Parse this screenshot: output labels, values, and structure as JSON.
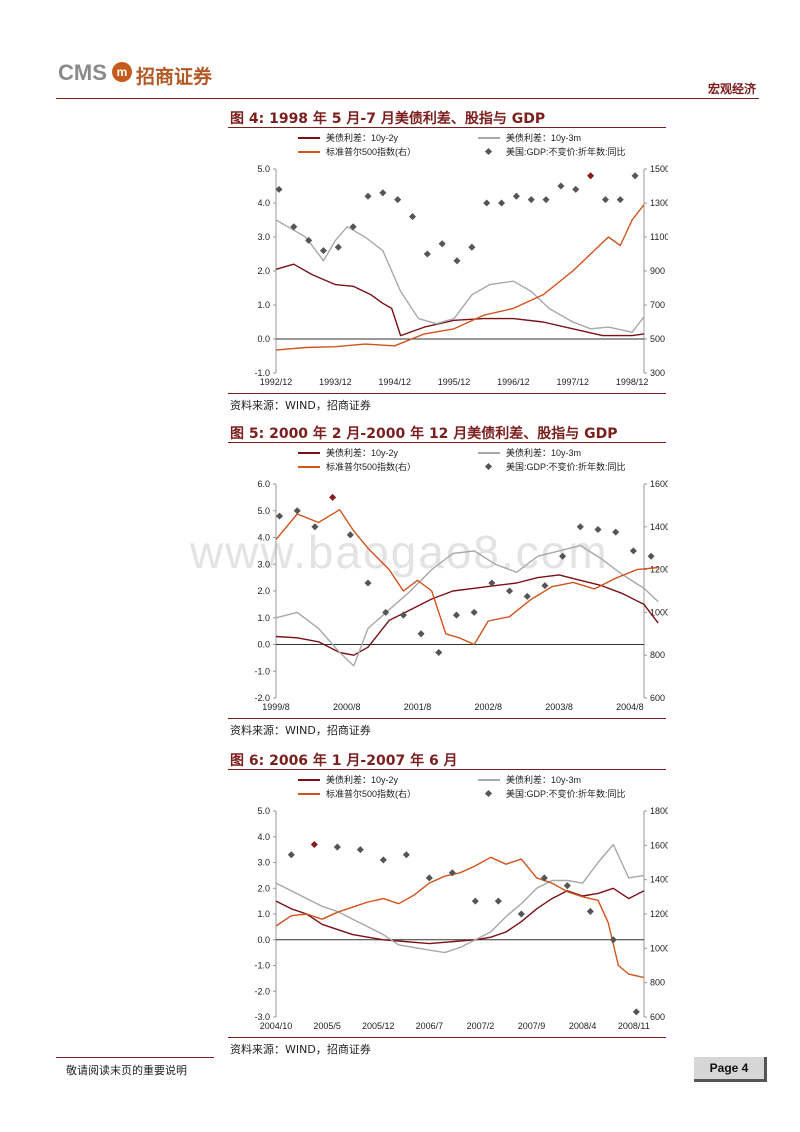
{
  "header": {
    "logo_text": "CMS",
    "logo_mark": "m",
    "logo_cn": "招商证券",
    "section": "宏观经济"
  },
  "watermark": "www.baogao8.com",
  "figures": [
    {
      "title": "图 4: 1998 年 5 月-7 月美债利差、股指与 GDP",
      "source": "资料来源：WIND，招商证券",
      "legend": [
        "美债利差：10y-2y",
        "美债利差：10y-3m",
        "标准普尔500指数(右）",
        "美国:GDP:不变价:折年数:同比"
      ]
    },
    {
      "title": "图 5: 2000 年 2 月-2000 年 12 月美债利差、股指与 GDP",
      "source": "资料来源：WIND，招商证券",
      "legend": [
        "美债利差：10y-2y",
        "美债利差：10y-3m",
        "标准普尔500指数(右）",
        "美国:GDP:不变价:折年数:同比"
      ]
    },
    {
      "title": "图 6: 2006 年 1 月-2007 年 6 月",
      "source": "资料来源：WIND，招商证券",
      "legend": [
        "美债利差：10y-2y",
        "美债利差：10y-3m",
        "标准普尔500指数(右）",
        "美国:GDP:不变价:折年数:同比"
      ]
    }
  ],
  "colors": {
    "spread_10y2y": "#7a1118",
    "spread_10y3m": "#a8a8a8",
    "sp500": "#d2531c",
    "gdp": "#555555",
    "gdp_highlight": "#8b1a1a",
    "accent": "#7a1e1e"
  },
  "chart_data": [
    {
      "type": "line",
      "x_ticks": [
        "1992/12",
        "1993/12",
        "1994/12",
        "1995/12",
        "1996/12",
        "1997/12",
        "1998/12"
      ],
      "ylim": [
        -1.0,
        5.0
      ],
      "y_ticks": [
        "5.0",
        "4.0",
        "3.0",
        "2.0",
        "1.0",
        "0.0",
        "-1.0"
      ],
      "y2lim": [
        300,
        1500
      ],
      "y2_ticks": [
        "1500",
        "1300",
        "1100",
        "900",
        "700",
        "500",
        "300"
      ],
      "series": [
        {
          "name": "美债利差：10y-2y",
          "x": [
            0,
            0.3,
            0.6,
            1,
            1.3,
            1.6,
            1.8,
            1.95,
            2.1,
            2.5,
            3,
            3.5,
            4,
            4.5,
            5,
            5.5,
            6,
            6.2
          ],
          "values": [
            2.05,
            2.2,
            1.9,
            1.6,
            1.55,
            1.3,
            1.05,
            0.9,
            0.1,
            0.35,
            0.55,
            0.6,
            0.6,
            0.5,
            0.3,
            0.1,
            0.1,
            0.15
          ]
        },
        {
          "name": "美债利差：10y-3m",
          "x": [
            0,
            0.2,
            0.5,
            0.8,
            1,
            1.2,
            1.5,
            1.8,
            2.1,
            2.4,
            2.7,
            3,
            3.3,
            3.6,
            4,
            4.3,
            4.6,
            5,
            5.3,
            5.6,
            6,
            6.2
          ],
          "values": [
            3.5,
            3.3,
            3.0,
            2.3,
            2.9,
            3.3,
            3.0,
            2.6,
            1.4,
            0.6,
            0.45,
            0.6,
            1.3,
            1.6,
            1.7,
            1.4,
            0.9,
            0.5,
            0.3,
            0.35,
            0.2,
            0.65
          ]
        },
        {
          "name": "标准普尔500指数(右）",
          "x": [
            0,
            0.5,
            1,
            1.5,
            2,
            2.5,
            3,
            3.5,
            4,
            4.5,
            5,
            5.3,
            5.6,
            5.8,
            6,
            6.2
          ],
          "values": [
            435,
            450,
            455,
            470,
            460,
            530,
            560,
            640,
            680,
            760,
            900,
            1000,
            1100,
            1050,
            1200,
            1290
          ]
        },
        {
          "name": "美国:GDP:不变价:折年数:同比",
          "type": "scatter",
          "x": [
            0.05,
            0.3,
            0.55,
            0.8,
            1.05,
            1.3,
            1.55,
            1.8,
            2.05,
            2.3,
            2.55,
            2.8,
            3.05,
            3.3,
            3.55,
            3.8,
            4.05,
            4.3,
            4.55,
            4.8,
            5.05,
            5.3,
            5.55,
            5.8,
            6.05
          ],
          "values": [
            4.4,
            3.3,
            2.9,
            2.6,
            2.7,
            3.3,
            4.2,
            4.3,
            4.1,
            3.6,
            2.5,
            2.8,
            2.3,
            2.7,
            4.0,
            4.0,
            4.2,
            4.1,
            4.1,
            4.5,
            4.4,
            4.8,
            4.1,
            4.1,
            4.8
          ]
        }
      ]
    },
    {
      "type": "line",
      "x_ticks": [
        "1999/8",
        "2000/8",
        "2001/8",
        "2002/8",
        "2003/8",
        "2004/8"
      ],
      "ylim": [
        -2.0,
        6.0
      ],
      "y_ticks": [
        "6.0",
        "5.0",
        "4.0",
        "3.0",
        "2.0",
        "1.0",
        "0.0",
        "-1.0",
        "-2.0"
      ],
      "y2lim": [
        600,
        1600
      ],
      "y2_ticks": [
        "1600",
        "1400",
        "1200",
        "1000",
        "800",
        "600"
      ],
      "series": [
        {
          "name": "美债利差：10y-2y",
          "x": [
            0,
            0.3,
            0.6,
            0.9,
            1.1,
            1.3,
            1.6,
            1.9,
            2.2,
            2.5,
            2.8,
            3.1,
            3.4,
            3.7,
            4,
            4.3,
            4.6,
            4.9,
            5.2,
            5.4
          ],
          "values": [
            0.3,
            0.25,
            0.1,
            -0.3,
            -0.4,
            -0.1,
            0.9,
            1.3,
            1.7,
            2.0,
            2.1,
            2.2,
            2.3,
            2.5,
            2.6,
            2.4,
            2.2,
            1.9,
            1.5,
            0.8
          ]
        },
        {
          "name": "美债利差：10y-3m",
          "x": [
            0,
            0.3,
            0.6,
            0.9,
            1.1,
            1.3,
            1.6,
            1.9,
            2.2,
            2.5,
            2.8,
            3.1,
            3.4,
            3.7,
            4,
            4.3,
            4.6,
            4.9,
            5.2,
            5.4
          ],
          "values": [
            1.0,
            1.2,
            0.6,
            -0.3,
            -0.8,
            0.6,
            1.3,
            2.0,
            2.8,
            3.4,
            3.5,
            3.0,
            2.7,
            3.3,
            3.5,
            3.7,
            3.2,
            2.6,
            2.1,
            1.6
          ]
        },
        {
          "name": "标准普尔500指数(右）",
          "x": [
            0,
            0.3,
            0.6,
            0.9,
            1.1,
            1.3,
            1.6,
            1.8,
            2.0,
            2.2,
            2.4,
            2.6,
            2.8,
            3.0,
            3.3,
            3.6,
            3.9,
            4.2,
            4.5,
            4.8,
            5.1,
            5.4
          ],
          "values": [
            1340,
            1460,
            1420,
            1480,
            1380,
            1300,
            1200,
            1100,
            1150,
            1100,
            900,
            880,
            850,
            960,
            980,
            1060,
            1120,
            1140,
            1110,
            1160,
            1200,
            1210
          ]
        },
        {
          "name": "美国:GDP:不变价:折年数:同比",
          "type": "scatter",
          "x": [
            0.05,
            0.3,
            0.55,
            0.8,
            1.05,
            1.3,
            1.55,
            1.8,
            2.05,
            2.3,
            2.55,
            2.8,
            3.05,
            3.3,
            3.55,
            3.8,
            4.05,
            4.3,
            4.55,
            4.8,
            5.05,
            5.3
          ],
          "values": [
            4.8,
            5.0,
            4.4,
            5.5,
            4.1,
            2.3,
            1.2,
            1.1,
            0.4,
            -0.3,
            1.1,
            1.2,
            2.3,
            2.0,
            1.8,
            2.2,
            3.3,
            4.4,
            4.3,
            4.2,
            3.5,
            3.3
          ]
        }
      ]
    },
    {
      "type": "line",
      "x_ticks": [
        "2004/10",
        "2005/5",
        "2005/12",
        "2006/7",
        "2007/2",
        "2007/9",
        "2008/4",
        "2008/11"
      ],
      "ylim": [
        -3.0,
        5.0
      ],
      "y_ticks": [
        "5.0",
        "4.0",
        "3.0",
        "2.0",
        "1.0",
        "0.0",
        "-1.0",
        "-2.0",
        "-3.0"
      ],
      "y2lim": [
        600,
        1800
      ],
      "y2_ticks": [
        "1800",
        "1600",
        "1400",
        "1200",
        "1000",
        "800",
        "600"
      ],
      "series": [
        {
          "name": "美债利差：10y-2y",
          "x": [
            0,
            0.3,
            0.6,
            0.9,
            1.2,
            1.5,
            1.8,
            2.1,
            2.4,
            2.7,
            3,
            3.3,
            3.6,
            3.9,
            4.2,
            4.5,
            4.8,
            5.1,
            5.4,
            5.7,
            6,
            6.3,
            6.6,
            6.9,
            7.2
          ],
          "values": [
            1.5,
            1.2,
            1.0,
            0.6,
            0.4,
            0.2,
            0.1,
            0.0,
            -0.05,
            -0.1,
            -0.15,
            -0.1,
            -0.05,
            0.0,
            0.1,
            0.3,
            0.7,
            1.2,
            1.6,
            1.9,
            1.7,
            1.8,
            2.0,
            1.6,
            1.9
          ]
        },
        {
          "name": "美债利差：10y-3m",
          "x": [
            0,
            0.3,
            0.6,
            0.9,
            1.2,
            1.5,
            1.8,
            2.1,
            2.4,
            2.7,
            3,
            3.3,
            3.6,
            3.9,
            4.2,
            4.5,
            4.8,
            5.1,
            5.4,
            5.7,
            6,
            6.3,
            6.6,
            6.9,
            7.2
          ],
          "values": [
            2.2,
            1.9,
            1.6,
            1.3,
            1.1,
            0.8,
            0.5,
            0.2,
            -0.2,
            -0.3,
            -0.4,
            -0.5,
            -0.3,
            0.0,
            0.3,
            0.9,
            1.4,
            2.0,
            2.3,
            2.3,
            2.2,
            3.0,
            3.7,
            2.4,
            2.5
          ]
        },
        {
          "name": "标准普尔500指数(右）",
          "x": [
            0,
            0.3,
            0.6,
            0.9,
            1.2,
            1.5,
            1.8,
            2.1,
            2.4,
            2.7,
            3,
            3.3,
            3.6,
            3.9,
            4.2,
            4.5,
            4.8,
            5.1,
            5.4,
            5.7,
            6,
            6.3,
            6.5,
            6.7,
            6.9,
            7.2
          ],
          "values": [
            1130,
            1190,
            1200,
            1170,
            1210,
            1240,
            1270,
            1290,
            1260,
            1310,
            1380,
            1420,
            1440,
            1480,
            1530,
            1490,
            1520,
            1410,
            1380,
            1330,
            1300,
            1280,
            1150,
            900,
            850,
            830
          ]
        },
        {
          "name": "美国:GDP:不变价:折年数:同比",
          "type": "scatter",
          "x": [
            0.3,
            0.75,
            1.2,
            1.65,
            2.1,
            2.55,
            3,
            3.45,
            3.9,
            4.35,
            4.8,
            5.25,
            5.7,
            6.15,
            6.6,
            7.05
          ],
          "values": [
            3.3,
            3.7,
            3.6,
            3.5,
            3.1,
            3.3,
            2.4,
            2.6,
            1.5,
            1.5,
            1.0,
            2.4,
            2.1,
            1.1,
            0.0,
            -2.8
          ]
        }
      ]
    }
  ]
}
